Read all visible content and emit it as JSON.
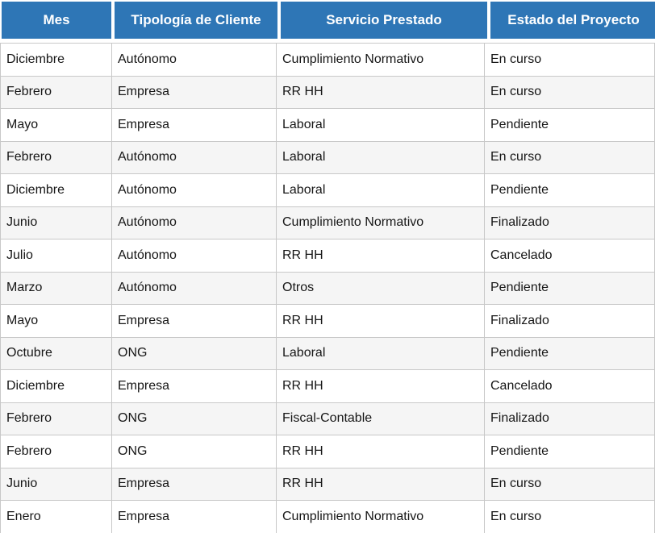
{
  "chart_data": {
    "type": "table",
    "title": "",
    "columns": [
      "Mes",
      "Tipología de Cliente",
      "Servicio Prestado",
      "Estado del Proyecto"
    ],
    "rows": [
      [
        "Diciembre",
        "Autónomo",
        "Cumplimiento Normativo",
        "En curso"
      ],
      [
        "Febrero",
        "Empresa",
        "RR HH",
        "En curso"
      ],
      [
        "Mayo",
        "Empresa",
        "Laboral",
        "Pendiente"
      ],
      [
        "Febrero",
        "Autónomo",
        "Laboral",
        "En curso"
      ],
      [
        "Diciembre",
        "Autónomo",
        "Laboral",
        "Pendiente"
      ],
      [
        "Junio",
        "Autónomo",
        "Cumplimiento Normativo",
        "Finalizado"
      ],
      [
        "Julio",
        "Autónomo",
        "RR HH",
        "Cancelado"
      ],
      [
        "Marzo",
        "Autónomo",
        "Otros",
        "Pendiente"
      ],
      [
        "Mayo",
        "Empresa",
        "RR HH",
        "Finalizado"
      ],
      [
        "Octubre",
        "ONG",
        "Laboral",
        "Pendiente"
      ],
      [
        "Diciembre",
        "Empresa",
        "RR HH",
        "Cancelado"
      ],
      [
        "Febrero",
        "ONG",
        "Fiscal-Contable",
        "Finalizado"
      ],
      [
        "Febrero",
        "ONG",
        "RR HH",
        "Pendiente"
      ],
      [
        "Junio",
        "Empresa",
        "RR HH",
        "En curso"
      ],
      [
        "Enero",
        "Empresa",
        "Cumplimiento Normativo",
        "En curso"
      ]
    ],
    "layout": {
      "zebra_striping": true,
      "header_position": "top"
    }
  },
  "colors": {
    "header_bg": "#2E76B6",
    "header_text": "#FFFFFF",
    "row_bg": "#FFFFFF",
    "row_alt_bg": "#F5F5F5",
    "border": "#C8C8C8",
    "body_text": "#161616"
  }
}
